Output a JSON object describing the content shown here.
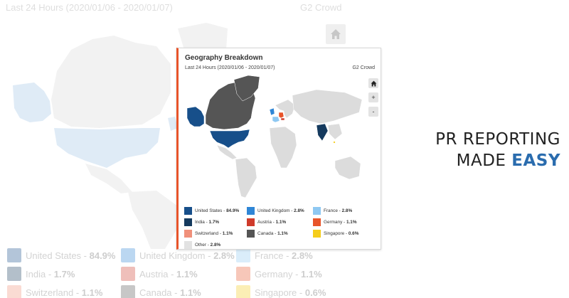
{
  "background": {
    "subtitle": "Last 24 Hours (2020/01/06 - 2020/01/07)",
    "brand": "G2 Crowd",
    "home_icon": "home-icon"
  },
  "widget": {
    "title": "Geography Breakdown",
    "subtitle": "Last 24 Hours (2020/01/06 - 2020/01/07)",
    "brand": "G2 Crowd",
    "controls": {
      "home_icon": "home-icon",
      "zoom_in_label": "+",
      "zoom_out_label": "-"
    }
  },
  "legend": [
    {
      "name": "United States",
      "value": "84.9%",
      "color": "#174f8a"
    },
    {
      "name": "United Kingdom",
      "value": "2.8%",
      "color": "#2f86d6"
    },
    {
      "name": "France",
      "value": "2.8%",
      "color": "#8ec8f2"
    },
    {
      "name": "India",
      "value": "1.7%",
      "color": "#153a5e"
    },
    {
      "name": "Austria",
      "value": "1.1%",
      "color": "#cf3b2b"
    },
    {
      "name": "Germany",
      "value": "1.1%",
      "color": "#e8542a"
    },
    {
      "name": "Switzerland",
      "value": "1.1%",
      "color": "#f0907a"
    },
    {
      "name": "Canada",
      "value": "1.1%",
      "color": "#555555"
    },
    {
      "name": "Singapore",
      "value": "0.6%",
      "color": "#f5cd1b"
    },
    {
      "name": "Other",
      "value": "2.8%",
      "color": "#e2e2e2"
    }
  ],
  "tagline": {
    "line1": "PR REPORTING",
    "line2_plain": "MADE ",
    "line2_accent": "EASY",
    "accent_color": "#2a6cae"
  }
}
